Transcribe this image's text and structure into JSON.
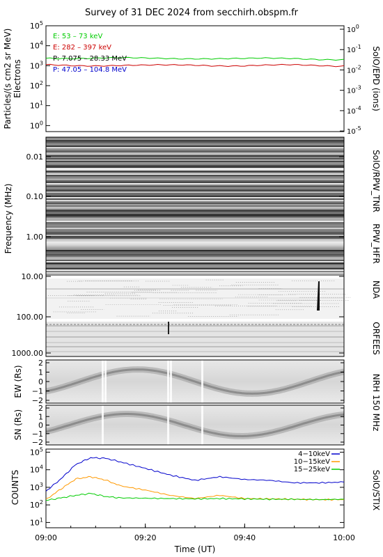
{
  "title": "Survey of 31 DEC 2024 from secchirh.obspm.fr",
  "x_axis": {
    "label": "Time (UT)",
    "ticks": [
      "09:00",
      "09:20",
      "09:40",
      "10:00"
    ]
  },
  "panels": {
    "epd": {
      "ylabel_line1": "Particles/(s cm2 sr MeV)",
      "ylabel_line2": "Electrons",
      "right_label": "SolO/EPD (ions)",
      "left_ticks": [
        "10^5",
        "10^4",
        "10^3",
        "10^2",
        "10^1",
        "10^0"
      ],
      "right_ticks": [
        "10^0",
        "10^-1",
        "10^-2",
        "10^-3",
        "10^-4",
        "10^-5"
      ],
      "legend": [
        {
          "text": "E: 53 – 73 keV",
          "color": "#00cc00"
        },
        {
          "text": "E: 282 – 397 keV",
          "color": "#cc0000"
        },
        {
          "text": "P: 7.075 – 28.33 MeV",
          "color": "#000000"
        },
        {
          "text": "P: 47.05 – 104.8 MeV",
          "color": "#0000cc"
        }
      ]
    },
    "radio": {
      "ylabel": "Frequency (MHz)",
      "ticks": [
        "0.01",
        "0.10",
        "1.00",
        "10.00",
        "100.00",
        "1000.00"
      ],
      "labels": [
        "SolO/RPW_TNR",
        "RPW_HFR",
        "NDA",
        "ORFEES"
      ]
    },
    "nrh_ew": {
      "ylabel": "EW (Rs)",
      "ticks": [
        "2",
        "1",
        "0",
        "−1",
        "−2"
      ]
    },
    "nrh_sn": {
      "ylabel": "SN (Rs)",
      "ticks": [
        "2",
        "1",
        "0",
        "−1",
        "−2"
      ]
    },
    "nrh_label": "NRH 150 MHz",
    "stix": {
      "ylabel": "COUNTS",
      "right_label": "SolO/STIX",
      "ticks": [
        "10^5",
        "10^4",
        "10^3",
        "10^2",
        "10^1"
      ],
      "legend": [
        {
          "text": "4−10keV",
          "color": "#0000cc"
        },
        {
          "text": "10−15keV",
          "color": "#ff9900"
        },
        {
          "text": "15−25keV",
          "color": "#00cc00"
        }
      ]
    }
  },
  "chart_data": [
    {
      "type": "line",
      "name": "SolO/EPD",
      "x": [
        0,
        10,
        20,
        30,
        40,
        50,
        60
      ],
      "x_unit": "minutes after 09:00",
      "yscale": "log",
      "ylim": [
        0.5,
        100000
      ],
      "series": [
        {
          "name": "E: 53 – 73 keV",
          "color": "#00cc00",
          "values": [
            2500,
            2400,
            2300,
            2400,
            2200,
            2300,
            2100
          ]
        },
        {
          "name": "E: 282 – 397 keV",
          "color": "#cc0000",
          "values": [
            1100,
            1050,
            1000,
            1100,
            1000,
            1050,
            1000
          ]
        }
      ]
    },
    {
      "type": "line",
      "name": "SolO/STIX",
      "x": [
        0,
        3,
        6,
        9,
        12,
        15,
        20,
        25,
        30,
        35,
        40,
        45,
        50,
        55,
        60
      ],
      "x_unit": "minutes after 09:00",
      "yscale": "log",
      "ylim": [
        5,
        150000
      ],
      "series": [
        {
          "name": "4−10keV",
          "color": "#0000cc",
          "values": [
            600,
            3000,
            20000,
            48000,
            45000,
            28000,
            12000,
            5000,
            2500,
            4000,
            2800,
            2500,
            1800,
            1800,
            2000
          ]
        },
        {
          "name": "10−15keV",
          "color": "#ff9900",
          "values": [
            200,
            800,
            3000,
            4000,
            2600,
            1200,
            700,
            350,
            230,
            350,
            230,
            220,
            210,
            200,
            200
          ]
        },
        {
          "name": "15−25keV",
          "color": "#00cc00",
          "values": [
            180,
            250,
            350,
            450,
            300,
            250,
            240,
            230,
            220,
            230,
            220,
            210,
            210,
            200,
            210
          ]
        }
      ]
    }
  ]
}
